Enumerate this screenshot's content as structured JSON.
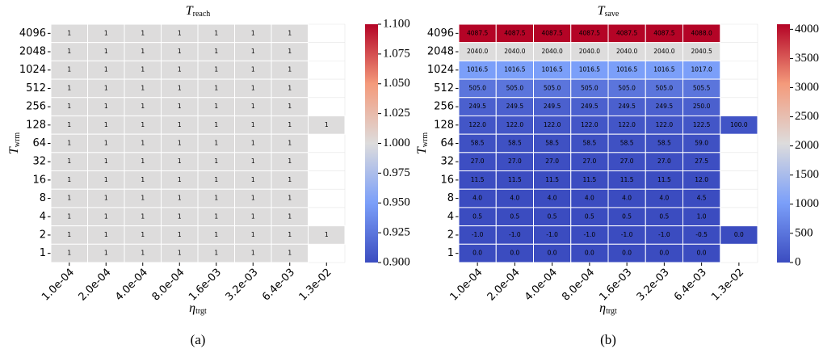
{
  "chart_data": [
    {
      "type": "heatmap",
      "title": {
        "text": "T",
        "sub": "reach"
      },
      "xlabel": {
        "text": "η",
        "sub": "trgt"
      },
      "ylabel": {
        "text": "T",
        "sub": "wrm"
      },
      "caption": "(a)",
      "categories": [
        "1.0e-04",
        "2.0e-04",
        "4.0e-04",
        "8.0e-04",
        "1.6e-03",
        "3.2e-03",
        "6.4e-03",
        "1.3e-02"
      ],
      "rows": [
        "4096",
        "2048",
        "1024",
        "512",
        "256",
        "128",
        "64",
        "32",
        "16",
        "8",
        "4",
        "2",
        "1"
      ],
      "values": [
        [
          1,
          1,
          1,
          1,
          1,
          1,
          1,
          null
        ],
        [
          1,
          1,
          1,
          1,
          1,
          1,
          1,
          null
        ],
        [
          1,
          1,
          1,
          1,
          1,
          1,
          1,
          null
        ],
        [
          1,
          1,
          1,
          1,
          1,
          1,
          1,
          null
        ],
        [
          1,
          1,
          1,
          1,
          1,
          1,
          1,
          null
        ],
        [
          1,
          1,
          1,
          1,
          1,
          1,
          1,
          1
        ],
        [
          1,
          1,
          1,
          1,
          1,
          1,
          1,
          null
        ],
        [
          1,
          1,
          1,
          1,
          1,
          1,
          1,
          null
        ],
        [
          1,
          1,
          1,
          1,
          1,
          1,
          1,
          null
        ],
        [
          1,
          1,
          1,
          1,
          1,
          1,
          1,
          null
        ],
        [
          1,
          1,
          1,
          1,
          1,
          1,
          1,
          null
        ],
        [
          1,
          1,
          1,
          1,
          1,
          1,
          1,
          1
        ],
        [
          1,
          1,
          1,
          1,
          1,
          1,
          1,
          null
        ]
      ],
      "colormap": "coolwarm",
      "clim": [
        0.9,
        1.1
      ],
      "cticks": [
        {
          "value": 0.9,
          "label": "0.900"
        },
        {
          "value": 0.925,
          "label": "0.925"
        },
        {
          "value": 0.95,
          "label": "0.950"
        },
        {
          "value": 0.975,
          "label": "0.975"
        },
        {
          "value": 1.0,
          "label": "1.000"
        },
        {
          "value": 1.025,
          "label": "1.025"
        },
        {
          "value": 1.05,
          "label": "1.050"
        },
        {
          "value": 1.075,
          "label": "1.075"
        },
        {
          "value": 1.1,
          "label": "1.100"
        }
      ]
    },
    {
      "type": "heatmap",
      "title": {
        "text": "T",
        "sub": "save"
      },
      "xlabel": {
        "text": "η",
        "sub": "trgt"
      },
      "ylabel": {
        "text": "T",
        "sub": "wrm"
      },
      "caption": "(b)",
      "categories": [
        "1.0e-04",
        "2.0e-04",
        "4.0e-04",
        "8.0e-04",
        "1.6e-03",
        "3.2e-03",
        "6.4e-03",
        "1.3e-02"
      ],
      "rows": [
        "4096",
        "2048",
        "1024",
        "512",
        "256",
        "128",
        "64",
        "32",
        "16",
        "8",
        "4",
        "2",
        "1"
      ],
      "values": [
        [
          4087.5,
          4087.5,
          4087.5,
          4087.5,
          4087.5,
          4087.5,
          4088,
          null
        ],
        [
          2040,
          2040,
          2040,
          2040,
          2040,
          2040,
          2040.5,
          null
        ],
        [
          1016.5,
          1016.5,
          1016.5,
          1016.5,
          1016.5,
          1016.5,
          1017,
          null
        ],
        [
          505,
          505,
          505,
          505,
          505,
          505,
          505.5,
          null
        ],
        [
          249.5,
          249.5,
          249.5,
          249.5,
          249.5,
          249.5,
          250,
          null
        ],
        [
          122,
          122,
          122,
          122,
          122,
          122,
          122.5,
          100
        ],
        [
          58.5,
          58.5,
          58.5,
          58.5,
          58.5,
          58.5,
          59,
          null
        ],
        [
          27,
          27,
          27,
          27,
          27,
          27,
          27.5,
          null
        ],
        [
          11.5,
          11.5,
          11.5,
          11.5,
          11.5,
          11.5,
          12,
          null
        ],
        [
          4,
          4,
          4,
          4,
          4,
          4,
          4.5,
          null
        ],
        [
          0.5,
          0.5,
          0.5,
          0.5,
          0.5,
          0.5,
          1,
          null
        ],
        [
          -1,
          -1,
          -1,
          -1,
          -1,
          -1,
          -0.5,
          0
        ],
        [
          0,
          0,
          0,
          0,
          0,
          0,
          0,
          null
        ]
      ],
      "value_labels": [
        [
          "4087.5",
          "4087.5",
          "4087.5",
          "4087.5",
          "4087.5",
          "4087.5",
          "4088.0",
          null
        ],
        [
          "2040.0",
          "2040.0",
          "2040.0",
          "2040.0",
          "2040.0",
          "2040.0",
          "2040.5",
          null
        ],
        [
          "1016.5",
          "1016.5",
          "1016.5",
          "1016.5",
          "1016.5",
          "1016.5",
          "1017.0",
          null
        ],
        [
          "505.0",
          "505.0",
          "505.0",
          "505.0",
          "505.0",
          "505.0",
          "505.5",
          null
        ],
        [
          "249.5",
          "249.5",
          "249.5",
          "249.5",
          "249.5",
          "249.5",
          "250.0",
          null
        ],
        [
          "122.0",
          "122.0",
          "122.0",
          "122.0",
          "122.0",
          "122.0",
          "122.5",
          "100.0"
        ],
        [
          "58.5",
          "58.5",
          "58.5",
          "58.5",
          "58.5",
          "58.5",
          "59.0",
          null
        ],
        [
          "27.0",
          "27.0",
          "27.0",
          "27.0",
          "27.0",
          "27.0",
          "27.5",
          null
        ],
        [
          "11.5",
          "11.5",
          "11.5",
          "11.5",
          "11.5",
          "11.5",
          "12.0",
          null
        ],
        [
          "4.0",
          "4.0",
          "4.0",
          "4.0",
          "4.0",
          "4.0",
          "4.5",
          null
        ],
        [
          "0.5",
          "0.5",
          "0.5",
          "0.5",
          "0.5",
          "0.5",
          "1.0",
          null
        ],
        [
          "-1.0",
          "-1.0",
          "-1.0",
          "-1.0",
          "-1.0",
          "-1.0",
          "-0.5",
          "0.0"
        ],
        [
          "0.0",
          "0.0",
          "0.0",
          "0.0",
          "0.0",
          "0.0",
          "0.0",
          null
        ]
      ],
      "colormap": "coolwarm",
      "clim": [
        -1,
        4088
      ],
      "cticks": [
        0,
        500,
        1000,
        1500,
        2000,
        2500,
        3000,
        3500,
        4000
      ]
    }
  ]
}
